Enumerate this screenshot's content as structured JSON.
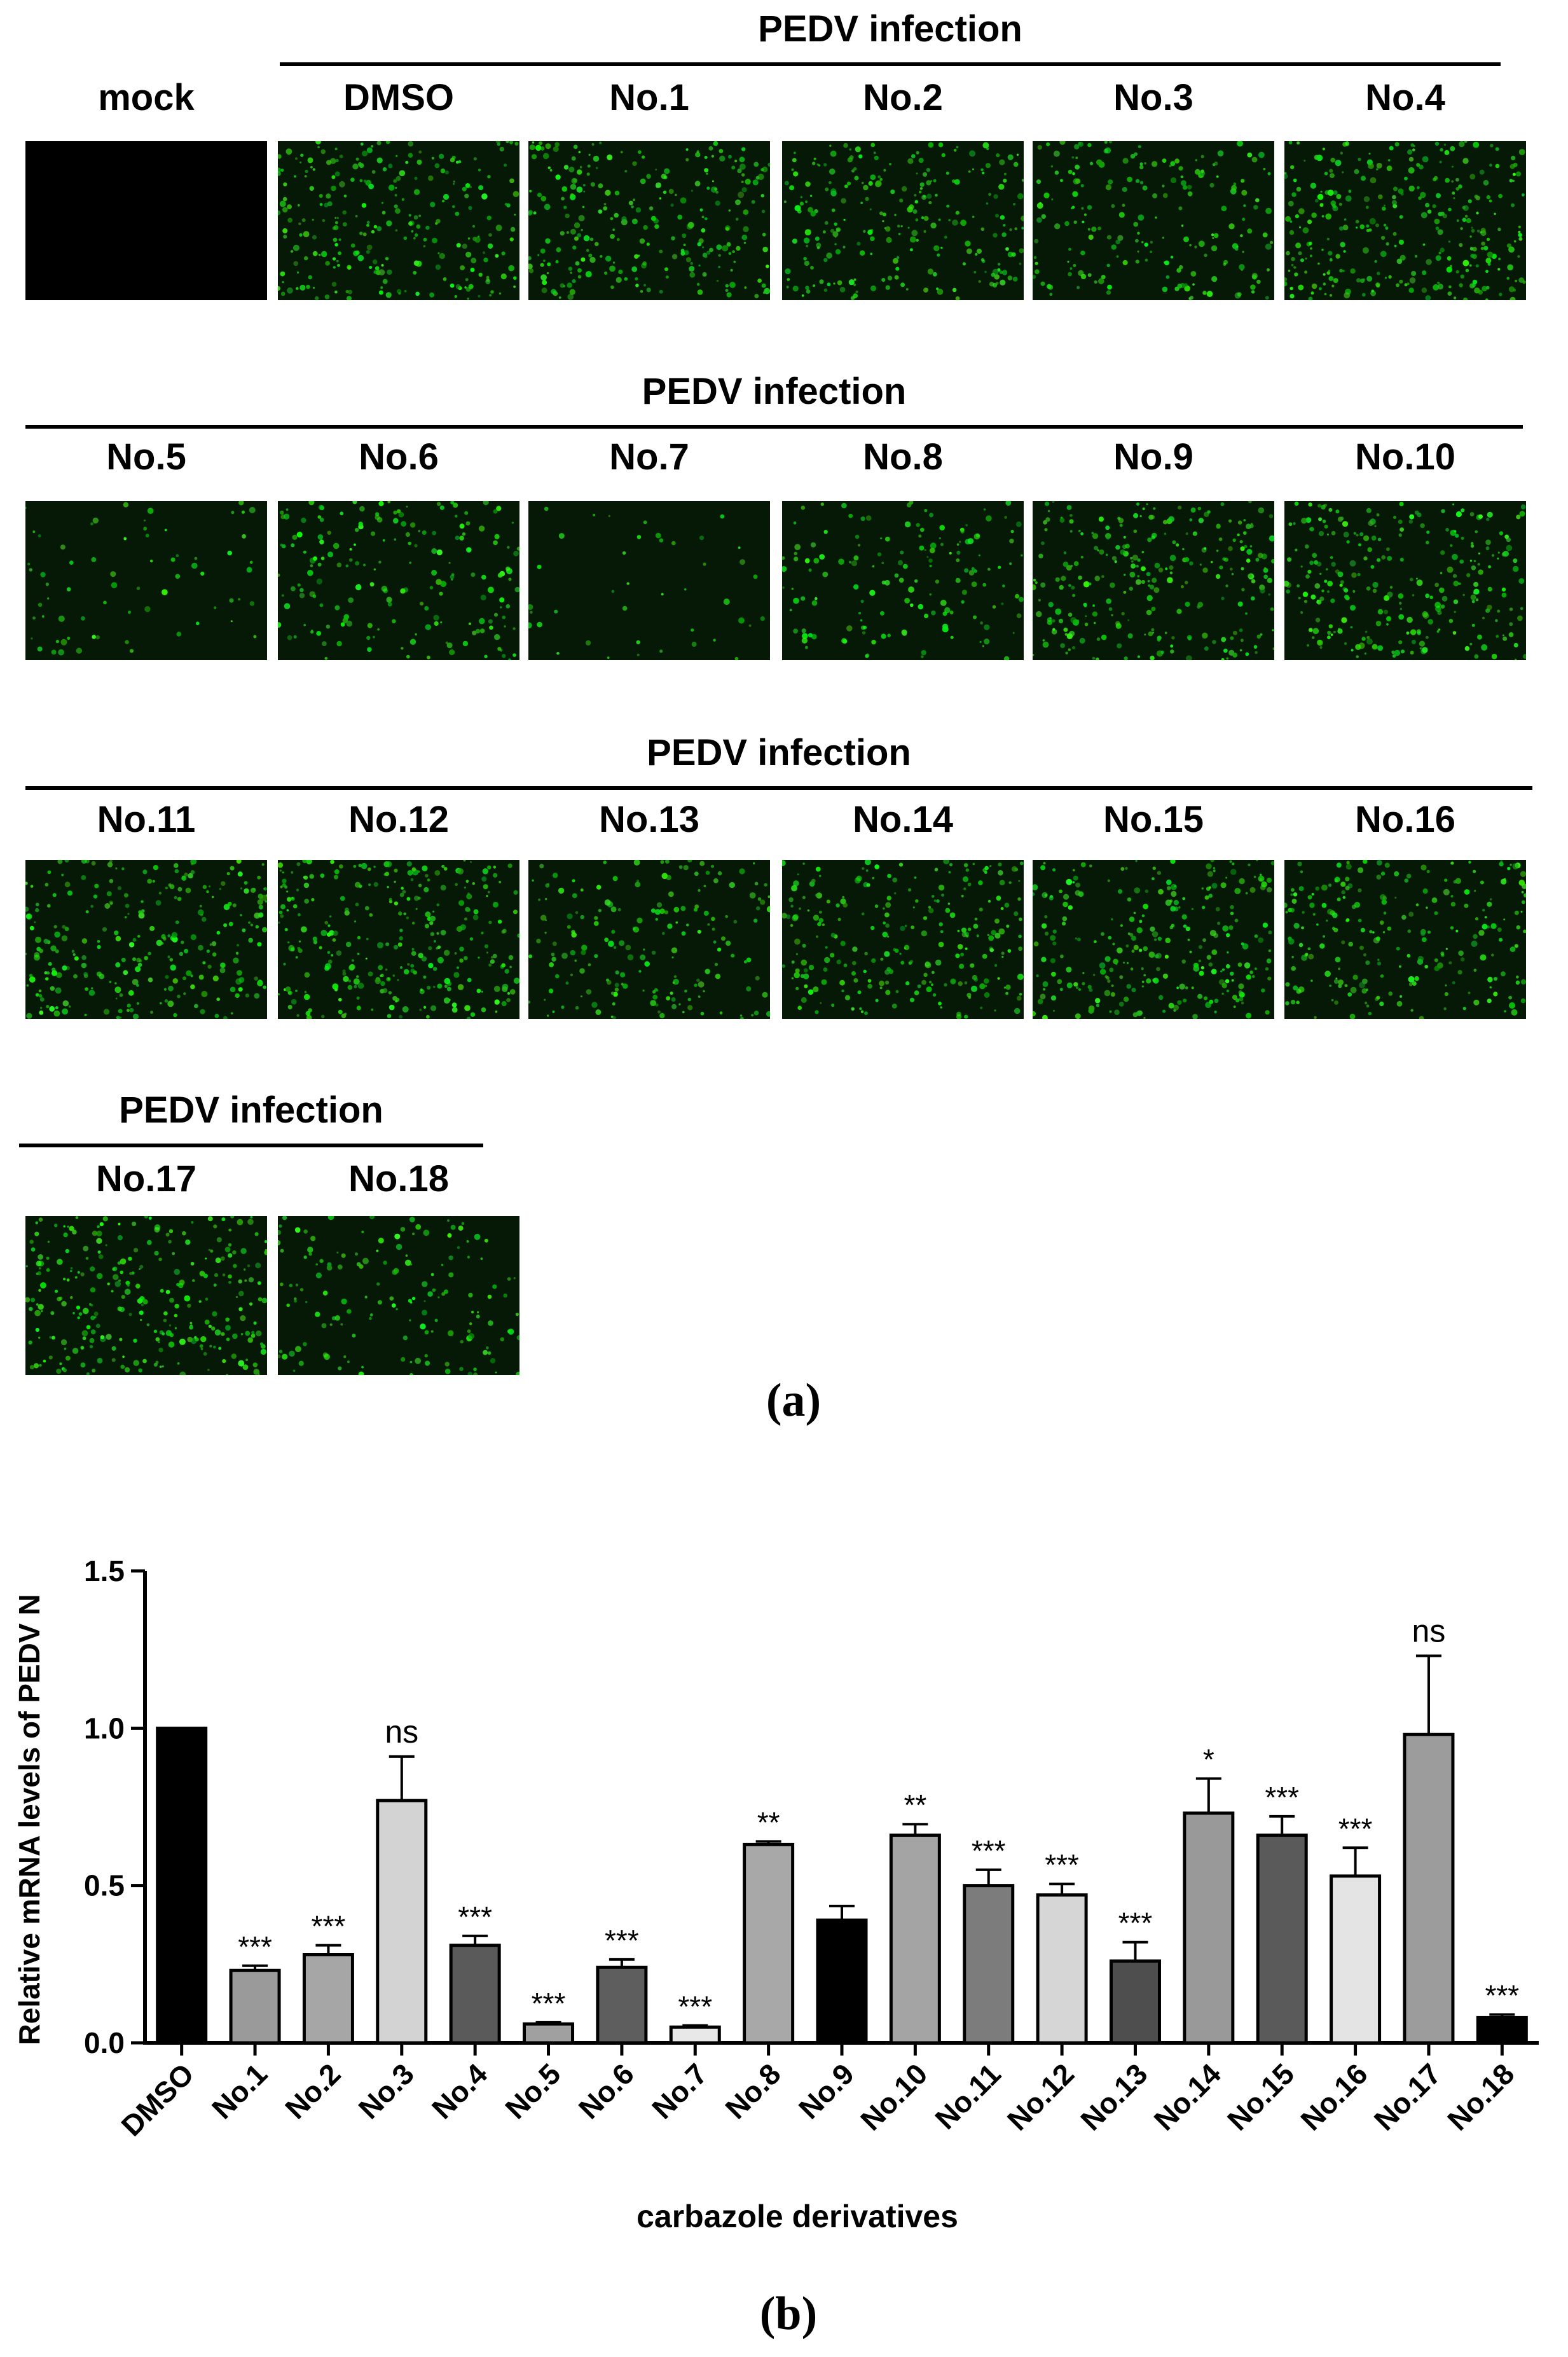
{
  "panel_a": {
    "rows": [
      {
        "group_title": "PEDV infection",
        "tiles": [
          {
            "label": "mock",
            "intensity": 0
          },
          {
            "label": "DMSO",
            "intensity": 0.8
          },
          {
            "label": "No.1",
            "intensity": 0.8
          },
          {
            "label": "No.2",
            "intensity": 0.75
          },
          {
            "label": "No.3",
            "intensity": 0.6
          },
          {
            "label": "No.4",
            "intensity": 0.95
          }
        ]
      },
      {
        "group_title": "PEDV infection",
        "tiles": [
          {
            "label": "No.5",
            "intensity": 0.2
          },
          {
            "label": "No.6",
            "intensity": 0.55
          },
          {
            "label": "No.7",
            "intensity": 0.12
          },
          {
            "label": "No.8",
            "intensity": 0.45
          },
          {
            "label": "No.9",
            "intensity": 0.8
          },
          {
            "label": "No.10",
            "intensity": 0.8
          }
        ]
      },
      {
        "group_title": "PEDV infection",
        "tiles": [
          {
            "label": "No.11",
            "intensity": 0.8
          },
          {
            "label": "No.12",
            "intensity": 0.9
          },
          {
            "label": "No.13",
            "intensity": 0.55
          },
          {
            "label": "No.14",
            "intensity": 0.75
          },
          {
            "label": "No.15",
            "intensity": 0.8
          },
          {
            "label": "No.16",
            "intensity": 0.7
          }
        ]
      },
      {
        "group_title": "PEDV infection",
        "tiles": [
          {
            "label": "No.17",
            "intensity": 0.85
          },
          {
            "label": "No.18",
            "intensity": 0.45
          }
        ]
      }
    ],
    "panel_label": "(a)"
  },
  "panel_b": {
    "panel_label": "(b)"
  },
  "chart_data": {
    "type": "bar",
    "title": "",
    "xlabel": "carbazole derivatives",
    "ylabel": "Relative mRNA levels of PEDV N",
    "ylim": [
      0,
      1.5
    ],
    "yticks": [
      "0.0",
      "0.5",
      "1.0",
      "1.5"
    ],
    "categories": [
      "DMSO",
      "No.1",
      "No.2",
      "No.3",
      "No.4",
      "No.5",
      "No.6",
      "No.7",
      "No.8",
      "No.9",
      "No.10",
      "No.11",
      "No.12",
      "No.13",
      "No.14",
      "No.15",
      "No.16",
      "No.17",
      "No.18"
    ],
    "values": [
      1.0,
      0.23,
      0.28,
      0.77,
      0.31,
      0.06,
      0.24,
      0.05,
      0.63,
      0.39,
      0.66,
      0.5,
      0.47,
      0.26,
      0.73,
      0.66,
      0.53,
      0.98,
      0.08
    ],
    "errors": [
      0,
      0.015,
      0.03,
      0.14,
      0.03,
      0.005,
      0.025,
      0.005,
      0.01,
      0.045,
      0.035,
      0.05,
      0.035,
      0.06,
      0.11,
      0.06,
      0.09,
      0.25,
      0.01
    ],
    "significance": [
      "",
      "***",
      "***",
      "ns",
      "***",
      "***",
      "***",
      "***",
      "**",
      "",
      "**",
      "***",
      "***",
      "***",
      "*",
      "***",
      "***",
      "ns",
      "***"
    ],
    "bar_colors": [
      "#000000",
      "#9a9a9a",
      "#a6a6a6",
      "#d3d3d3",
      "#5a5a5a",
      "#a0a0a0",
      "#5e5e5e",
      "#e8e8e8",
      "#a8a8a8",
      "#000000",
      "#a4a4a4",
      "#7c7c7c",
      "#d6d6d6",
      "#4e4e4e",
      "#999999",
      "#5a5a5a",
      "#e4e4e4",
      "#9c9c9c",
      "#000000"
    ],
    "grid": false,
    "legend": "none"
  }
}
